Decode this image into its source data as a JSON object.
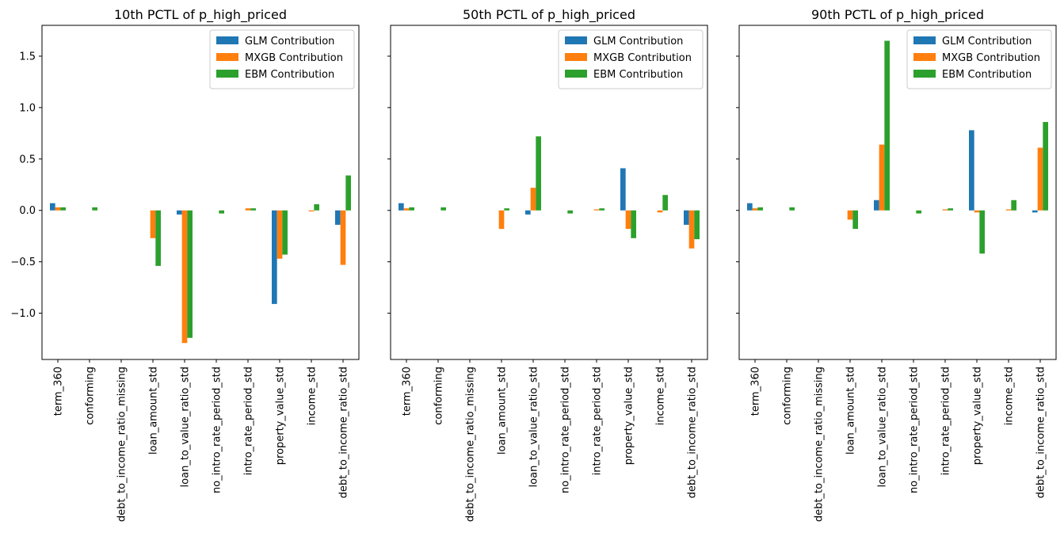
{
  "colors": {
    "glm": "#1f77b4",
    "mxgb": "#ff7f0e",
    "ebm": "#2ca02c"
  },
  "legend_placement": "top-right",
  "chart_data": [
    {
      "type": "bar",
      "title": "10th PCTL of p_high_priced",
      "categories": [
        "term_360",
        "conforming",
        "debt_to_income_ratio_missing",
        "loan_amount_std",
        "loan_to_value_ratio_std",
        "no_intro_rate_period_std",
        "intro_rate_period_std",
        "property_value_std",
        "income_std",
        "debt_to_income_ratio_std"
      ],
      "ylim": [
        -1.45,
        1.8
      ],
      "yticks": [
        -1.0,
        -0.5,
        0.0,
        0.5,
        1.0,
        1.5
      ],
      "ytick_labels": [
        "−1.0",
        "−0.5",
        "0.0",
        "0.5",
        "1.0",
        "1.5"
      ],
      "series": [
        {
          "name": "GLM Contribution",
          "values": [
            0.07,
            0.0,
            0.0,
            0.0,
            -0.04,
            0.0,
            0.0,
            -0.91,
            0.0,
            -0.14
          ]
        },
        {
          "name": "MXGB Contribution",
          "values": [
            0.03,
            0.0,
            0.0,
            -0.27,
            -1.29,
            0.0,
            0.02,
            -0.47,
            -0.01,
            -0.53
          ]
        },
        {
          "name": "EBM Contribution",
          "values": [
            0.03,
            0.03,
            0.0,
            -0.54,
            -1.24,
            -0.03,
            0.02,
            -0.43,
            0.06,
            0.34
          ]
        }
      ]
    },
    {
      "type": "bar",
      "title": "50th PCTL of p_high_priced",
      "categories": [
        "term_360",
        "conforming",
        "debt_to_income_ratio_missing",
        "loan_amount_std",
        "loan_to_value_ratio_std",
        "no_intro_rate_period_std",
        "intro_rate_period_std",
        "property_value_std",
        "income_std",
        "debt_to_income_ratio_std"
      ],
      "ylim": [
        -1.45,
        1.8
      ],
      "series": [
        {
          "name": "GLM Contribution",
          "values": [
            0.07,
            0.0,
            0.0,
            0.0,
            -0.04,
            0.0,
            0.0,
            0.41,
            0.0,
            -0.14
          ]
        },
        {
          "name": "MXGB Contribution",
          "values": [
            0.02,
            0.0,
            0.0,
            -0.18,
            0.22,
            0.0,
            0.01,
            -0.18,
            -0.02,
            -0.37
          ]
        },
        {
          "name": "EBM Contribution",
          "values": [
            0.03,
            0.03,
            0.0,
            0.02,
            0.72,
            -0.03,
            0.02,
            -0.27,
            0.15,
            -0.28
          ]
        }
      ]
    },
    {
      "type": "bar",
      "title": "90th PCTL of p_high_priced",
      "categories": [
        "term_360",
        "conforming",
        "debt_to_income_ratio_missing",
        "loan_amount_std",
        "loan_to_value_ratio_std",
        "no_intro_rate_period_std",
        "intro_rate_period_std",
        "property_value_std",
        "income_std",
        "debt_to_income_ratio_std"
      ],
      "ylim": [
        -1.45,
        1.8
      ],
      "series": [
        {
          "name": "GLM Contribution",
          "values": [
            0.07,
            0.0,
            0.0,
            0.0,
            0.1,
            0.0,
            0.0,
            0.78,
            0.0,
            -0.02
          ]
        },
        {
          "name": "MXGB Contribution",
          "values": [
            0.02,
            0.0,
            0.0,
            -0.09,
            0.64,
            0.0,
            0.01,
            -0.02,
            0.01,
            0.61
          ]
        },
        {
          "name": "EBM Contribution",
          "values": [
            0.03,
            0.03,
            0.0,
            -0.18,
            1.65,
            -0.03,
            0.02,
            -0.42,
            0.1,
            0.86
          ]
        }
      ]
    }
  ]
}
